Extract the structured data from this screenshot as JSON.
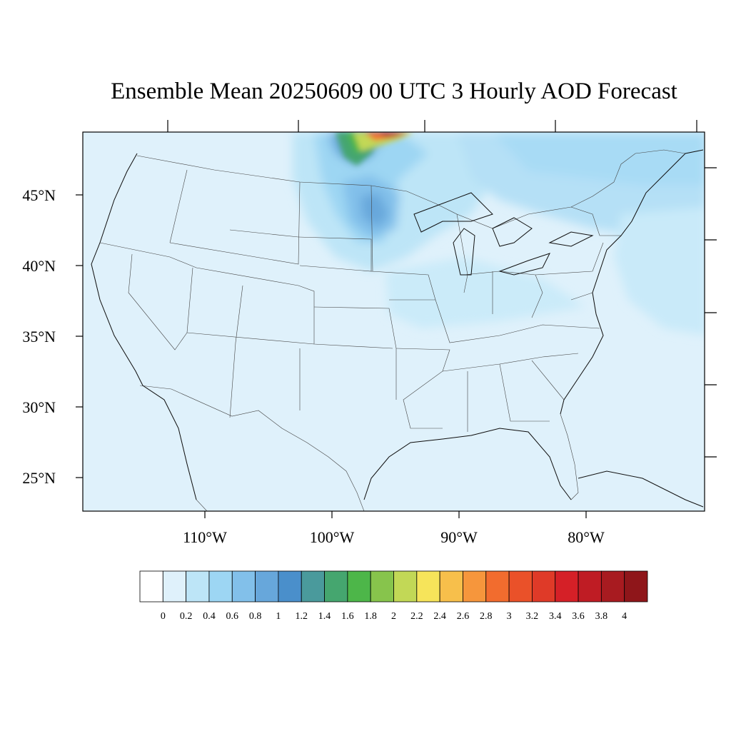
{
  "title": "Ensemble Mean 20250609 00 UTC 3 Hourly AOD Forecast",
  "map": {
    "lat_labels": [
      "45°N",
      "40°N",
      "35°N",
      "30°N",
      "25°N"
    ],
    "lon_labels": [
      "110°W",
      "100°W",
      "90°W",
      "80°W"
    ],
    "background_color": "#dff1fb"
  },
  "colorbar": {
    "labels": [
      "0",
      "0.2",
      "0.4",
      "0.6",
      "0.8",
      "1",
      "1.2",
      "1.4",
      "1.6",
      "1.8",
      "2",
      "2.2",
      "2.4",
      "2.6",
      "2.8",
      "3",
      "3.2",
      "3.4",
      "3.6",
      "3.8",
      "4"
    ],
    "colors": [
      "#ffffff",
      "#dff1fb",
      "#bde5f7",
      "#9dd6f3",
      "#82c0ea",
      "#67a7db",
      "#4a8fcb",
      "#4a9a9c",
      "#45a66f",
      "#4db649",
      "#87c44c",
      "#c2d856",
      "#f6e45a",
      "#f7bf4b",
      "#f6963c",
      "#f26c2e",
      "#ea5129",
      "#df3a28",
      "#d52027",
      "#bf1c24",
      "#a81b20",
      "#8f161a"
    ]
  }
}
